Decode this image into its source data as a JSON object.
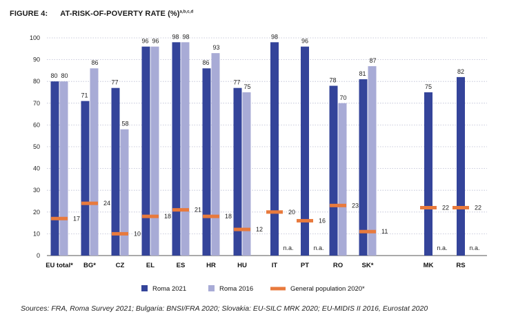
{
  "figure": {
    "label": "FIGURE 4:",
    "title": "AT-RISK-OF-POVERTY RATE (%)",
    "title_sup": "a,b,c,d"
  },
  "source": "Sources: FRA, Roma Survey 2021; Bulgaria: BNSI/FRA 2020; Slovakia: EU-SILC MRK 2020; EU-MIDIS II 2016, Eurostat 2020",
  "chart_data": {
    "type": "bar",
    "categories": [
      "EU total*",
      "BG*",
      "CZ",
      "EL",
      "ES",
      "HR",
      "HU",
      "IT",
      "PT",
      "RO",
      "SK*",
      "MK",
      "RS"
    ],
    "ylim": [
      0,
      100
    ],
    "yticks": [
      0,
      10,
      20,
      30,
      40,
      50,
      60,
      70,
      80,
      90,
      100
    ],
    "grid": true,
    "legend_position": "bottom",
    "na_label": "n.a.",
    "colors": {
      "roma2021": "#34449a",
      "roma2016": "#a8abd6",
      "general": "#e87a3d",
      "grid": "#b8bad0"
    },
    "series": [
      {
        "name": "Roma 2021",
        "values": [
          80,
          71,
          77,
          96,
          98,
          86,
          77,
          98,
          96,
          78,
          81,
          75,
          82
        ]
      },
      {
        "name": "Roma 2016",
        "values": [
          80,
          86,
          58,
          96,
          98,
          93,
          75,
          null,
          null,
          70,
          87,
          null,
          null
        ]
      },
      {
        "name": "General population 2020*",
        "values": [
          17,
          24,
          10,
          18,
          21,
          18,
          12,
          20,
          16,
          23,
          11,
          22,
          22
        ]
      }
    ]
  }
}
